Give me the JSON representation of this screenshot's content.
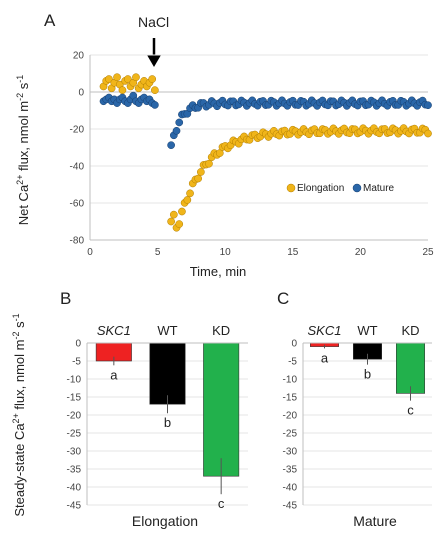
{
  "chart_data": [
    {
      "panel_label": "A",
      "type": "scatter",
      "annotation": "NaCl",
      "annotation_x": 5,
      "xlabel": "Time, min",
      "ylabel": "Net Ca<sup>2+</sup> flux, nmol m<sup>-2</sup> s<sup>-1</sup>",
      "ylabel_parts": [
        "Net Ca",
        "2+",
        " flux, nmol m",
        "-2",
        " s",
        "-1"
      ],
      "xlim": [
        0,
        25
      ],
      "ylim": [
        -80,
        20
      ],
      "xticks": [
        0,
        5,
        10,
        15,
        20,
        25
      ],
      "yticks": [
        -80,
        -60,
        -40,
        -20,
        0,
        20
      ],
      "legend_position": "bottom-right",
      "series": [
        {
          "name": "Elongation",
          "color": "#f0b51a",
          "before": {
            "start": 1.0,
            "end": 4.8,
            "step": 0.2,
            "values": [
              3,
              6,
              7,
              2,
              5,
              8,
              4,
              1,
              6,
              7,
              3,
              5,
              8,
              2,
              4,
              6,
              3,
              5,
              7,
              1
            ]
          },
          "after": {
            "start": 6.0,
            "end": 25.0,
            "step": 0.2,
            "shape": {
              "a": -70,
              "b": -21,
              "tau": 2.0,
              "dip_until": 6.6
            },
            "noise_amplitude": 1.5
          }
        },
        {
          "name": "Mature",
          "color": "#2a66a8",
          "before": {
            "start": 1.0,
            "end": 4.8,
            "step": 0.2,
            "values": [
              -5,
              -4,
              -3,
              -5,
              -4,
              -6,
              -4,
              -3,
              -5,
              -6,
              -4,
              -2,
              -5,
              -6,
              -4,
              -3,
              -5,
              -4,
              -6,
              -7
            ]
          },
          "after": {
            "start": 6.0,
            "end": 25.0,
            "step": 0.2,
            "shape": {
              "a": -30,
              "b": -6,
              "tau": 0.7,
              "dip_until": 6.0
            },
            "noise_amplitude": 1.5
          }
        }
      ]
    },
    {
      "panel_label": "B",
      "type": "bar",
      "title": "Elongation",
      "ylabel_parts": [
        "Steady-state Ca",
        "2+",
        " flux, nmol m",
        "-2",
        " s",
        "-1"
      ],
      "categories": [
        "SKC1",
        "WT",
        "KD"
      ],
      "category_italic": [
        true,
        false,
        false
      ],
      "values": [
        -5,
        -17,
        -37
      ],
      "errors": [
        1.2,
        2.5,
        5
      ],
      "colors": [
        "#ee2222",
        "#000000",
        "#22b14c"
      ],
      "letters": [
        "a",
        "b",
        "c"
      ],
      "ylim": [
        -45,
        0
      ],
      "yticks": [
        0,
        -5,
        -10,
        -15,
        -20,
        -25,
        -30,
        -35,
        -40,
        -45
      ]
    },
    {
      "panel_label": "C",
      "type": "bar",
      "title": "Mature",
      "categories": [
        "SKC1",
        "WT",
        "KD"
      ],
      "category_italic": [
        true,
        false,
        false
      ],
      "values": [
        -1,
        -4.5,
        -14
      ],
      "errors": [
        0.5,
        1.5,
        2
      ],
      "colors": [
        "#ee2222",
        "#000000",
        "#22b14c"
      ],
      "letters": [
        "a",
        "b",
        "c"
      ],
      "ylim": [
        -45,
        0
      ],
      "yticks": [
        0,
        -5,
        -10,
        -15,
        -20,
        -25,
        -30,
        -35,
        -40,
        -45
      ]
    }
  ]
}
